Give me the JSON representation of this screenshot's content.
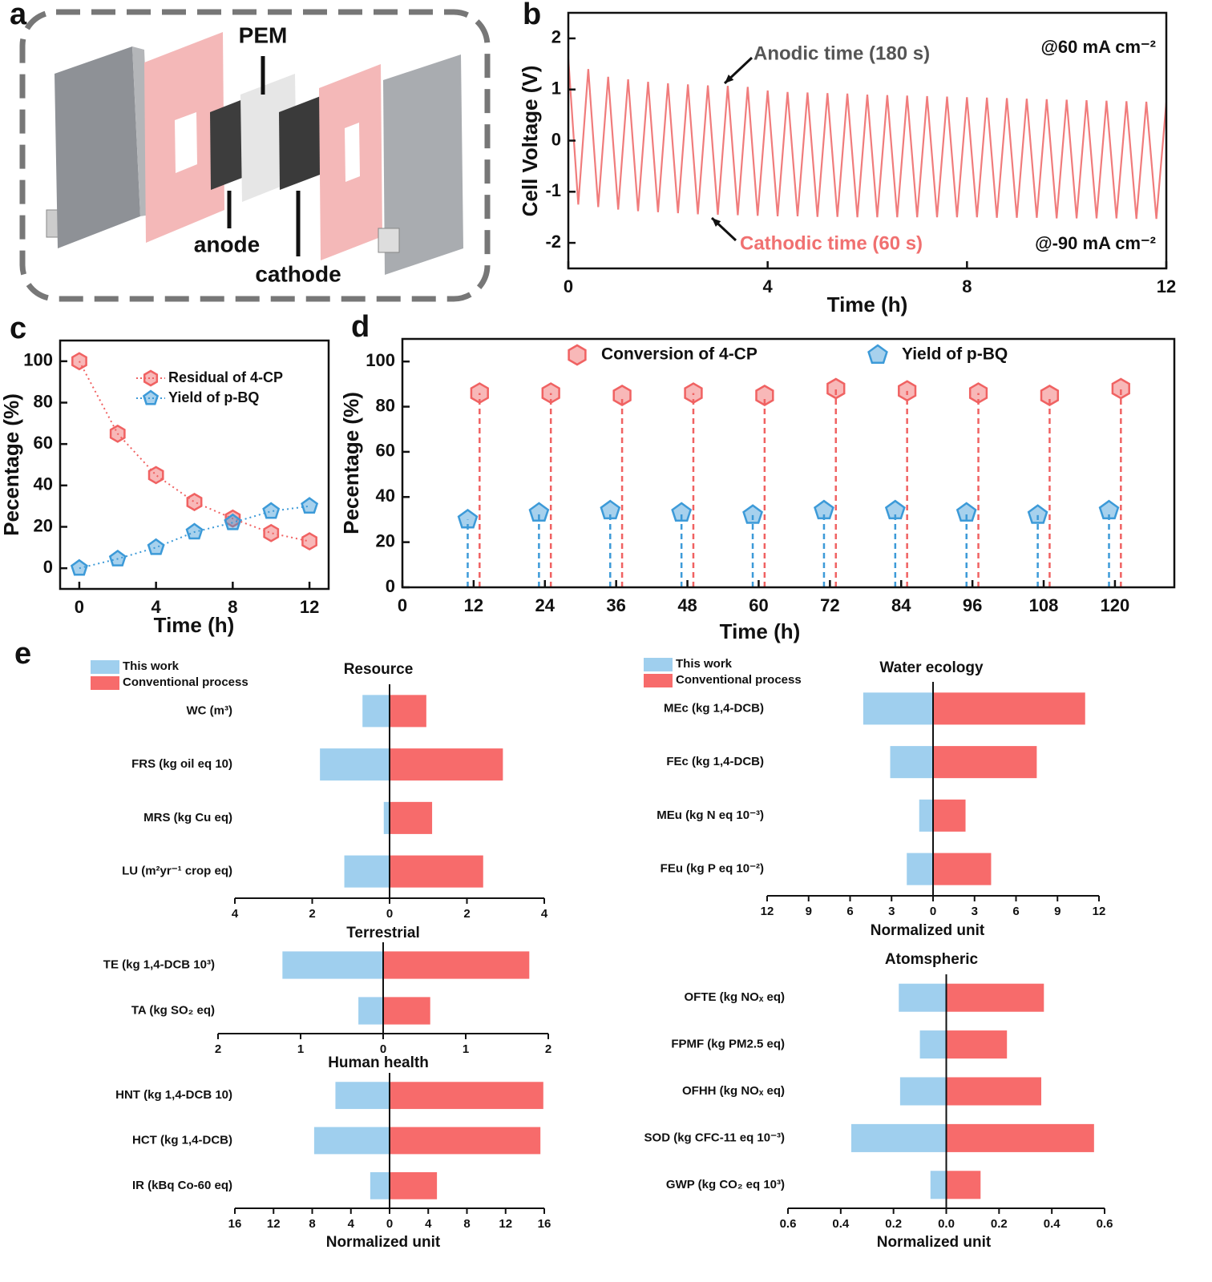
{
  "panel_labels": [
    "a",
    "b",
    "c",
    "d",
    "e"
  ],
  "diagram": {
    "labels": [
      "PEM",
      "anode",
      "cathode"
    ]
  },
  "chart_data": [
    {
      "type": "line",
      "xlabel": "Time (h)",
      "ylabel": "Cell Voltage (V)",
      "x": [
        0,
        0.2,
        0.4,
        0.6,
        0.8,
        1,
        1.2,
        1.4,
        1.6,
        1.8,
        2,
        2.2,
        2.4,
        2.6,
        2.8,
        3,
        3.2,
        3.4,
        3.6,
        3.8,
        4,
        4.2,
        4.4,
        4.6,
        4.8,
        5,
        5.2,
        5.4,
        5.6,
        5.8,
        6,
        6.2,
        6.4,
        6.6,
        6.8,
        7,
        7.2,
        7.4,
        7.6,
        7.8,
        8,
        8.2,
        8.4,
        8.6,
        8.8,
        9,
        9.2,
        9.4,
        9.6,
        9.8,
        10,
        10.2,
        10.4,
        10.6,
        10.8,
        11,
        11.2,
        11.4,
        11.6,
        11.8,
        12
      ],
      "series": [
        {
          "color": "#f07c7c",
          "values": [
            1.6,
            -1.25,
            1.4,
            -1.3,
            1.25,
            -1.35,
            1.2,
            -1.38,
            1.15,
            -1.4,
            1.12,
            -1.42,
            1.1,
            -1.44,
            1.08,
            -1.45,
            1.07,
            -1.46,
            1.05,
            -1.47,
            0.98,
            -1.48,
            0.95,
            -1.48,
            0.94,
            -1.49,
            0.93,
            -1.49,
            0.92,
            -1.5,
            0.9,
            -1.5,
            0.89,
            -1.5,
            0.88,
            -1.5,
            0.87,
            -1.5,
            0.86,
            -1.5,
            0.85,
            -1.5,
            0.84,
            -1.51,
            0.83,
            -1.51,
            0.82,
            -1.51,
            0.81,
            -1.52,
            0.8,
            -1.52,
            0.79,
            -1.52,
            0.78,
            -1.52,
            0.77,
            -1.53,
            0.76,
            -1.53,
            0.75
          ]
        }
      ],
      "xlim": [
        0,
        12
      ],
      "xticks": [
        0,
        4,
        8,
        12
      ],
      "ylim": [
        -2.5,
        2.5
      ],
      "yticks": [
        -2,
        -1,
        0,
        1,
        2
      ],
      "annotations": [
        {
          "text": "Anodic time (180 s)",
          "color": "#555555"
        },
        {
          "text": "Cathodic time (60 s)",
          "color": "#f07070"
        },
        {
          "text": "@60 mA cm⁻²",
          "color": "#111111"
        },
        {
          "text": "@-90 mA cm⁻²",
          "color": "#111111"
        }
      ]
    },
    {
      "type": "line",
      "xlabel": "Time (h)",
      "ylabel": "Pecentage (%)",
      "legend": "upper right",
      "x": [
        0,
        2,
        4,
        6,
        8,
        10,
        12
      ],
      "series": [
        {
          "name": "Residual of 4-CP",
          "color": "#f06262",
          "marker": "hexagon",
          "linestyle": "dotted",
          "values": [
            100,
            65,
            45,
            32,
            24,
            17,
            13
          ]
        },
        {
          "name": "Yield of p-BQ",
          "color": "#3c9ad8",
          "marker": "pentagon",
          "linestyle": "dotted",
          "values": [
            0,
            4.5,
            10,
            17.5,
            22,
            27.5,
            30
          ]
        }
      ],
      "xlim": [
        -1,
        13
      ],
      "xticks": [
        0,
        4,
        8,
        12
      ],
      "ylim": [
        -10,
        110
      ],
      "yticks": [
        0,
        20,
        40,
        60,
        80,
        100
      ]
    },
    {
      "type": "stem",
      "xlabel": "Time (h)",
      "ylabel": "Pecentage (%)",
      "legend": "top",
      "series": [
        {
          "name": "Conversion of 4-CP",
          "color": "#f06262",
          "marker": "hexagon",
          "x": [
            13,
            25,
            37,
            49,
            61,
            73,
            85,
            97,
            109,
            121
          ],
          "values": [
            86,
            86,
            85,
            86,
            85,
            88,
            87,
            86,
            85,
            88
          ]
        },
        {
          "name": "Yield of p-BQ",
          "color": "#3c9ad8",
          "marker": "pentagon",
          "x": [
            11,
            23,
            35,
            47,
            59,
            71,
            83,
            95,
            107,
            119
          ],
          "values": [
            30,
            33,
            34,
            33,
            32,
            34,
            34,
            33,
            32,
            34
          ]
        }
      ],
      "xlim": [
        0,
        130
      ],
      "xticks": [
        0,
        12,
        24,
        36,
        48,
        60,
        72,
        84,
        96,
        108,
        120
      ],
      "ylim": [
        0,
        110
      ],
      "yticks": [
        0,
        20,
        40,
        60,
        80,
        100
      ]
    },
    {
      "type": "hbar",
      "title": "Resource",
      "legend": "upper left",
      "categories": [
        "WC (m³)",
        "FRS (kg oil eq 10)",
        "MRS (kg Cu eq)",
        "LU (m²yr⁻¹ crop eq)"
      ],
      "series": [
        {
          "name": "This work",
          "color": "#9fcfee",
          "values": [
            -0.7,
            -1.8,
            -0.15,
            -1.17
          ]
        },
        {
          "name": "Conventional process",
          "color": "#f76b6b",
          "values": [
            0.95,
            2.93,
            1.1,
            2.42
          ]
        }
      ],
      "xlim": [
        -4,
        4
      ],
      "xticks": [
        {
          "value": -4,
          "label": "4"
        },
        {
          "value": -2,
          "label": "2"
        },
        0,
        2,
        4
      ]
    },
    {
      "type": "hbar",
      "title": "Water ecology",
      "legend": "upper left",
      "xlabel": "Normalized unit",
      "categories": [
        "MEc (kg 1,4-DCB)",
        "FEc (kg 1,4-DCB)",
        "MEu (kg N eq 10⁻³)",
        "FEu (kg P eq 10⁻²)"
      ],
      "series": [
        {
          "name": "This work",
          "color": "#9fcfee",
          "values": [
            -5.05,
            -3.1,
            -1.0,
            -1.9
          ]
        },
        {
          "name": "Conventional process",
          "color": "#f76b6b",
          "values": [
            11.0,
            7.5,
            2.35,
            4.2
          ]
        }
      ],
      "xlim": [
        -12,
        12
      ],
      "xticks": [
        {
          "value": -12,
          "label": "12"
        },
        {
          "value": -9,
          "label": "9"
        },
        {
          "value": -6,
          "label": "6"
        },
        {
          "value": -3,
          "label": "3"
        },
        0,
        3,
        6,
        9,
        12
      ]
    },
    {
      "type": "hbar",
      "title": "Terrestrial",
      "categories": [
        "TE (kg 1,4-DCB 10³)",
        "TA (kg SO₂ eq)"
      ],
      "series": [
        {
          "color": "#9fcfee",
          "values": [
            -1.22,
            -0.3
          ]
        },
        {
          "color": "#f76b6b",
          "values": [
            1.77,
            0.57
          ]
        }
      ],
      "xlim": [
        -2,
        2
      ],
      "xticks": [
        {
          "value": -2,
          "label": "2"
        },
        {
          "value": -1,
          "label": "1"
        },
        0,
        1,
        2
      ]
    },
    {
      "type": "hbar",
      "title": "Human health",
      "xlabel": "Normalized unit",
      "categories": [
        "HNT (kg 1,4-DCB 10)",
        "HCT (kg 1,4-DCB)",
        "IR (kBq Co-60 eq)"
      ],
      "series": [
        {
          "color": "#9fcfee",
          "values": [
            -5.6,
            -7.8,
            -2.0
          ]
        },
        {
          "color": "#f76b6b",
          "values": [
            15.9,
            15.6,
            4.9
          ]
        }
      ],
      "xlim": [
        -16,
        16
      ],
      "xticks": [
        {
          "value": -16,
          "label": "16"
        },
        {
          "value": -12,
          "label": "12"
        },
        {
          "value": -8,
          "label": "8"
        },
        {
          "value": -4,
          "label": "4"
        },
        0,
        4,
        8,
        12,
        16
      ]
    },
    {
      "type": "hbar",
      "title": "Atomspheric",
      "xlabel": "Normalized unit",
      "categories": [
        "OFTE (kg NOₓ eq)",
        "FPMF (kg PM2.5 eq)",
        "OFHH (kg NOₓ eq)",
        "SOD (kg CFC-11 eq 10⁻³)",
        "GWP (kg CO₂ eq 10³)"
      ],
      "series": [
        {
          "color": "#9fcfee",
          "values": [
            -0.18,
            -0.1,
            -0.175,
            -0.36,
            -0.06
          ]
        },
        {
          "color": "#f76b6b",
          "values": [
            0.37,
            0.23,
            0.36,
            0.56,
            0.13
          ]
        }
      ],
      "xlim": [
        -0.6,
        0.6
      ],
      "xticks": [
        {
          "value": -0.6,
          "label": "0.6"
        },
        {
          "value": -0.4,
          "label": "0.4"
        },
        {
          "value": -0.2,
          "label": "0.2"
        },
        {
          "value": 0,
          "label": "0.0"
        },
        0.2,
        0.4,
        0.6
      ]
    }
  ]
}
